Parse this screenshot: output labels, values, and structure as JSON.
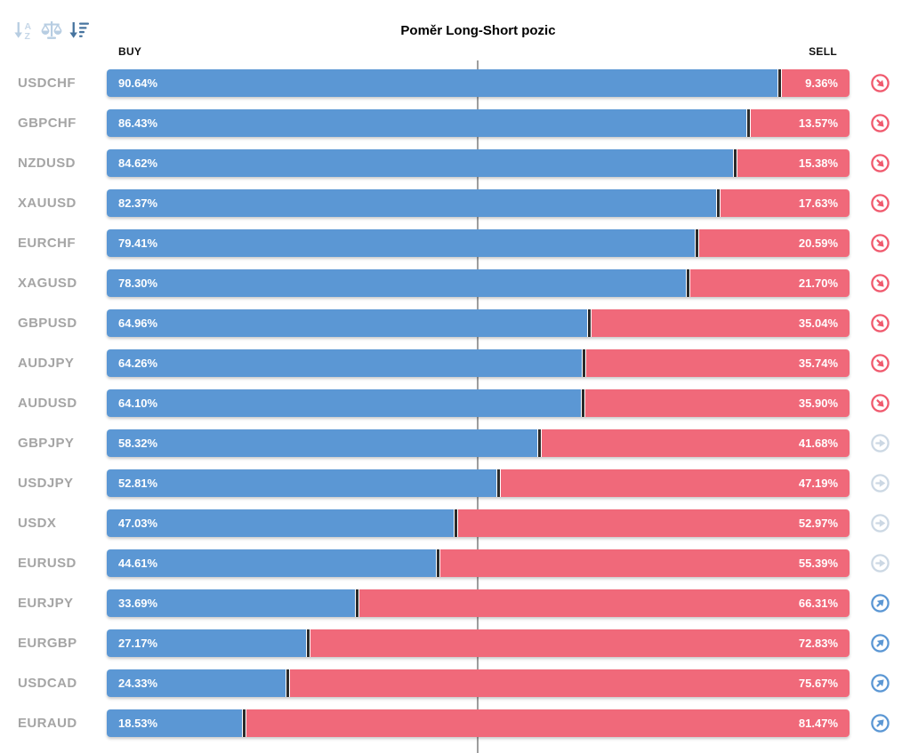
{
  "title": "Poměr Long-Short pozic",
  "columns": {
    "buy_label": "BUY",
    "sell_label": "SELL"
  },
  "toolbar": {
    "buttons": [
      {
        "id": "sort-alphabetical",
        "active": false
      },
      {
        "id": "sort-balance",
        "active": false
      },
      {
        "id": "sort-amount-desc",
        "active": true
      }
    ]
  },
  "chart_data": {
    "type": "bar",
    "orientation": "horizontal",
    "stacked": true,
    "title": "Poměr Long-Short pozic",
    "xlim": [
      0,
      100
    ],
    "center_line_at": 50,
    "value_label_format": "0.00%",
    "categories": [
      "USDCHF",
      "GBPCHF",
      "NZDUSD",
      "XAUUSD",
      "EURCHF",
      "XAGUSD",
      "GBPUSD",
      "AUDJPY",
      "AUDUSD",
      "GBPJPY",
      "USDJPY",
      "USDX",
      "EURUSD",
      "EURJPY",
      "EURGBP",
      "USDCAD",
      "EURAUD"
    ],
    "series": [
      {
        "name": "BUY",
        "color": "#5b97d4",
        "values": [
          90.64,
          86.43,
          84.62,
          82.37,
          79.41,
          78.3,
          64.96,
          64.26,
          64.1,
          58.32,
          52.81,
          47.03,
          44.61,
          33.69,
          27.17,
          24.33,
          18.53
        ]
      },
      {
        "name": "SELL",
        "color": "#f0697a",
        "values": [
          9.36,
          13.57,
          15.38,
          17.63,
          20.59,
          21.7,
          35.04,
          35.74,
          35.9,
          41.68,
          47.19,
          52.97,
          55.39,
          66.31,
          72.83,
          75.67,
          81.47
        ]
      }
    ],
    "signals": [
      "down",
      "down",
      "down",
      "down",
      "down",
      "down",
      "down",
      "down",
      "down",
      "neutral",
      "neutral",
      "neutral",
      "neutral",
      "up",
      "up",
      "up",
      "up"
    ]
  },
  "colors": {
    "buy_bar": "#5b97d4",
    "sell_bar": "#f0697a",
    "bar_divider": "#2b2b2b",
    "row_label": "#a5a5a5",
    "center_line": "#9e9e9e",
    "header_text": "#111111",
    "signal_down": "#f05a6e",
    "signal_neutral": "#ccd8e4",
    "signal_up": "#5b97d4",
    "sort_icon_inactive": "#b7cde2",
    "sort_icon_active": "#47749f"
  }
}
